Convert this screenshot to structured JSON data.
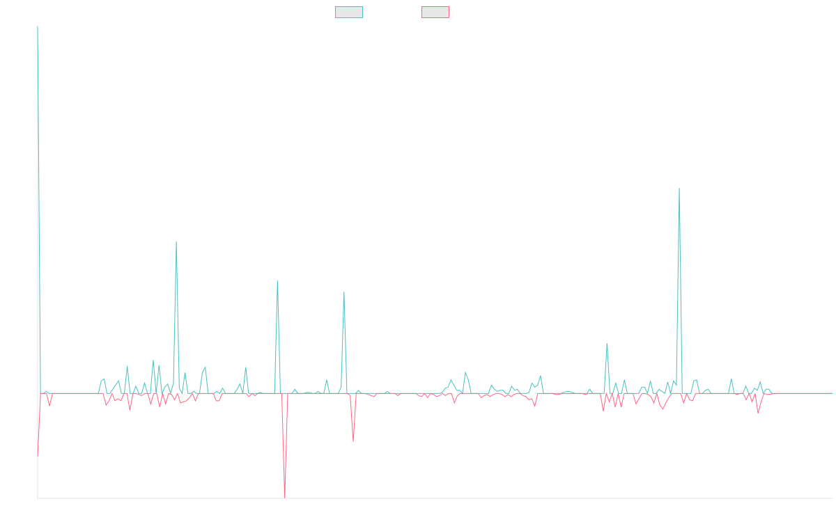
{
  "chart_data": {
    "type": "line",
    "title": "",
    "xlabel": "",
    "ylabel": "",
    "ylim": [
      -100,
      350
    ],
    "grid": false,
    "legend": {
      "placement": "top-center"
    },
    "series": [
      {
        "name": "",
        "color": "#4bc0c0",
        "values": [
          350,
          0,
          0,
          2,
          0,
          0,
          0,
          0,
          0,
          0,
          0,
          0,
          0,
          0,
          0,
          0,
          0,
          0,
          0,
          0,
          0,
          0,
          12,
          14,
          0,
          0,
          4,
          8,
          12,
          0,
          0,
          26,
          0,
          0,
          7,
          0,
          0,
          10,
          0,
          0,
          32,
          0,
          27,
          0,
          6,
          9,
          0,
          10,
          145,
          5,
          0,
          20,
          0,
          0,
          2,
          0,
          0,
          20,
          25,
          0,
          0,
          0,
          2,
          0,
          5,
          0,
          0,
          0,
          0,
          4,
          9,
          0,
          25,
          0,
          0,
          0,
          0,
          1,
          0,
          0,
          0,
          0,
          0,
          108,
          0,
          0,
          0,
          0,
          0,
          4,
          0,
          0,
          0,
          1,
          1,
          0,
          0,
          2,
          0,
          0,
          13,
          0,
          0,
          0,
          0,
          6,
          97,
          0,
          0,
          0,
          0,
          3,
          0,
          0,
          0,
          0,
          0,
          0,
          0,
          0,
          0,
          2,
          0,
          0,
          0,
          0,
          0,
          0,
          0,
          0,
          0,
          0,
          0,
          0,
          0,
          0,
          0,
          0,
          0,
          0,
          1,
          5,
          6,
          13,
          8,
          3,
          3,
          0,
          20,
          13,
          0,
          0,
          0,
          0,
          0,
          0,
          0,
          8,
          4,
          2,
          3,
          3,
          0,
          0,
          7,
          3,
          4,
          0,
          0,
          0,
          1,
          10,
          6,
          8,
          17,
          0,
          0,
          0,
          0,
          0,
          0,
          0,
          1,
          2,
          2,
          1,
          0,
          0,
          0,
          0,
          0,
          4,
          0,
          0,
          0,
          0,
          0,
          48,
          0,
          0,
          10,
          0,
          0,
          13,
          0,
          0,
          0,
          0,
          0,
          6,
          6,
          0,
          12,
          0,
          0,
          4,
          2,
          0,
          11,
          0,
          12,
          8,
          196,
          0,
          0,
          0,
          0,
          12,
          13,
          0,
          0,
          3,
          4,
          0,
          0,
          0,
          0,
          0,
          0,
          0,
          14,
          0,
          0,
          0,
          0,
          7,
          0,
          0,
          5,
          3,
          11,
          0,
          4,
          4,
          0,
          0,
          0,
          0,
          0,
          0,
          0,
          0,
          0,
          0,
          0,
          0,
          0,
          0,
          0,
          0,
          0,
          0,
          0,
          0,
          0,
          0
        ]
      },
      {
        "name": "",
        "color": "#ff6384",
        "values": [
          -60,
          0,
          0,
          0,
          -12,
          0,
          0,
          0,
          0,
          0,
          0,
          0,
          0,
          0,
          0,
          0,
          0,
          0,
          0,
          0,
          0,
          0,
          0,
          -11,
          -7,
          0,
          -7,
          -5,
          -7,
          0,
          0,
          -16,
          0,
          0,
          -1,
          -2,
          0,
          0,
          -10,
          0,
          0,
          -13,
          0,
          -10,
          0,
          -1,
          -6,
          0,
          -9,
          -8,
          -7,
          -4,
          0,
          -7,
          0,
          0,
          0,
          0,
          0,
          0,
          -7,
          -7,
          0,
          0,
          0,
          0,
          0,
          0,
          0,
          0,
          0,
          -3,
          0,
          -2,
          0,
          0,
          0,
          0,
          0,
          0,
          0,
          0,
          0,
          -100,
          0,
          0,
          0,
          0,
          0,
          0,
          0,
          0,
          0,
          0,
          0,
          0,
          0,
          0,
          0,
          0,
          0,
          0,
          0,
          0,
          0,
          -2,
          -46,
          0,
          0,
          0,
          0,
          -1,
          -2,
          -3,
          0,
          0,
          0,
          0,
          0,
          0,
          0,
          -2,
          0,
          0,
          0,
          0,
          0,
          0,
          -2,
          -3,
          0,
          -4,
          0,
          -1,
          -3,
          -2,
          0,
          -2,
          0,
          0,
          -9,
          -2,
          0,
          0,
          0,
          0,
          0,
          0,
          0,
          -4,
          -2,
          -1,
          -3,
          -1,
          0,
          0,
          -1,
          -3,
          -1,
          -3,
          -1,
          0,
          0,
          -2,
          -3,
          -6,
          -5,
          -12,
          0,
          0,
          0,
          0,
          0,
          0,
          -1,
          -1,
          0,
          0,
          0,
          0,
          0,
          0,
          0,
          0,
          -1,
          0,
          0,
          0,
          0,
          0,
          -17,
          0,
          -8,
          0,
          -13,
          0,
          -13,
          0,
          0,
          0,
          0,
          -10,
          -5,
          0,
          0,
          -1,
          -3,
          -9,
          0,
          -11,
          -15,
          -9,
          -4,
          0,
          0,
          0,
          0,
          -9,
          0,
          -6,
          -7,
          0,
          0,
          0,
          0,
          0,
          0,
          0,
          0,
          0,
          0,
          0,
          0,
          0,
          0,
          -1,
          0,
          0,
          -6,
          0,
          -8,
          0,
          -19,
          -8,
          0,
          -1,
          -1,
          0,
          0,
          0,
          0,
          0,
          0,
          0,
          0,
          0,
          0,
          0,
          0,
          0,
          0,
          0,
          0,
          0,
          0,
          0,
          0,
          0
        ]
      }
    ]
  }
}
